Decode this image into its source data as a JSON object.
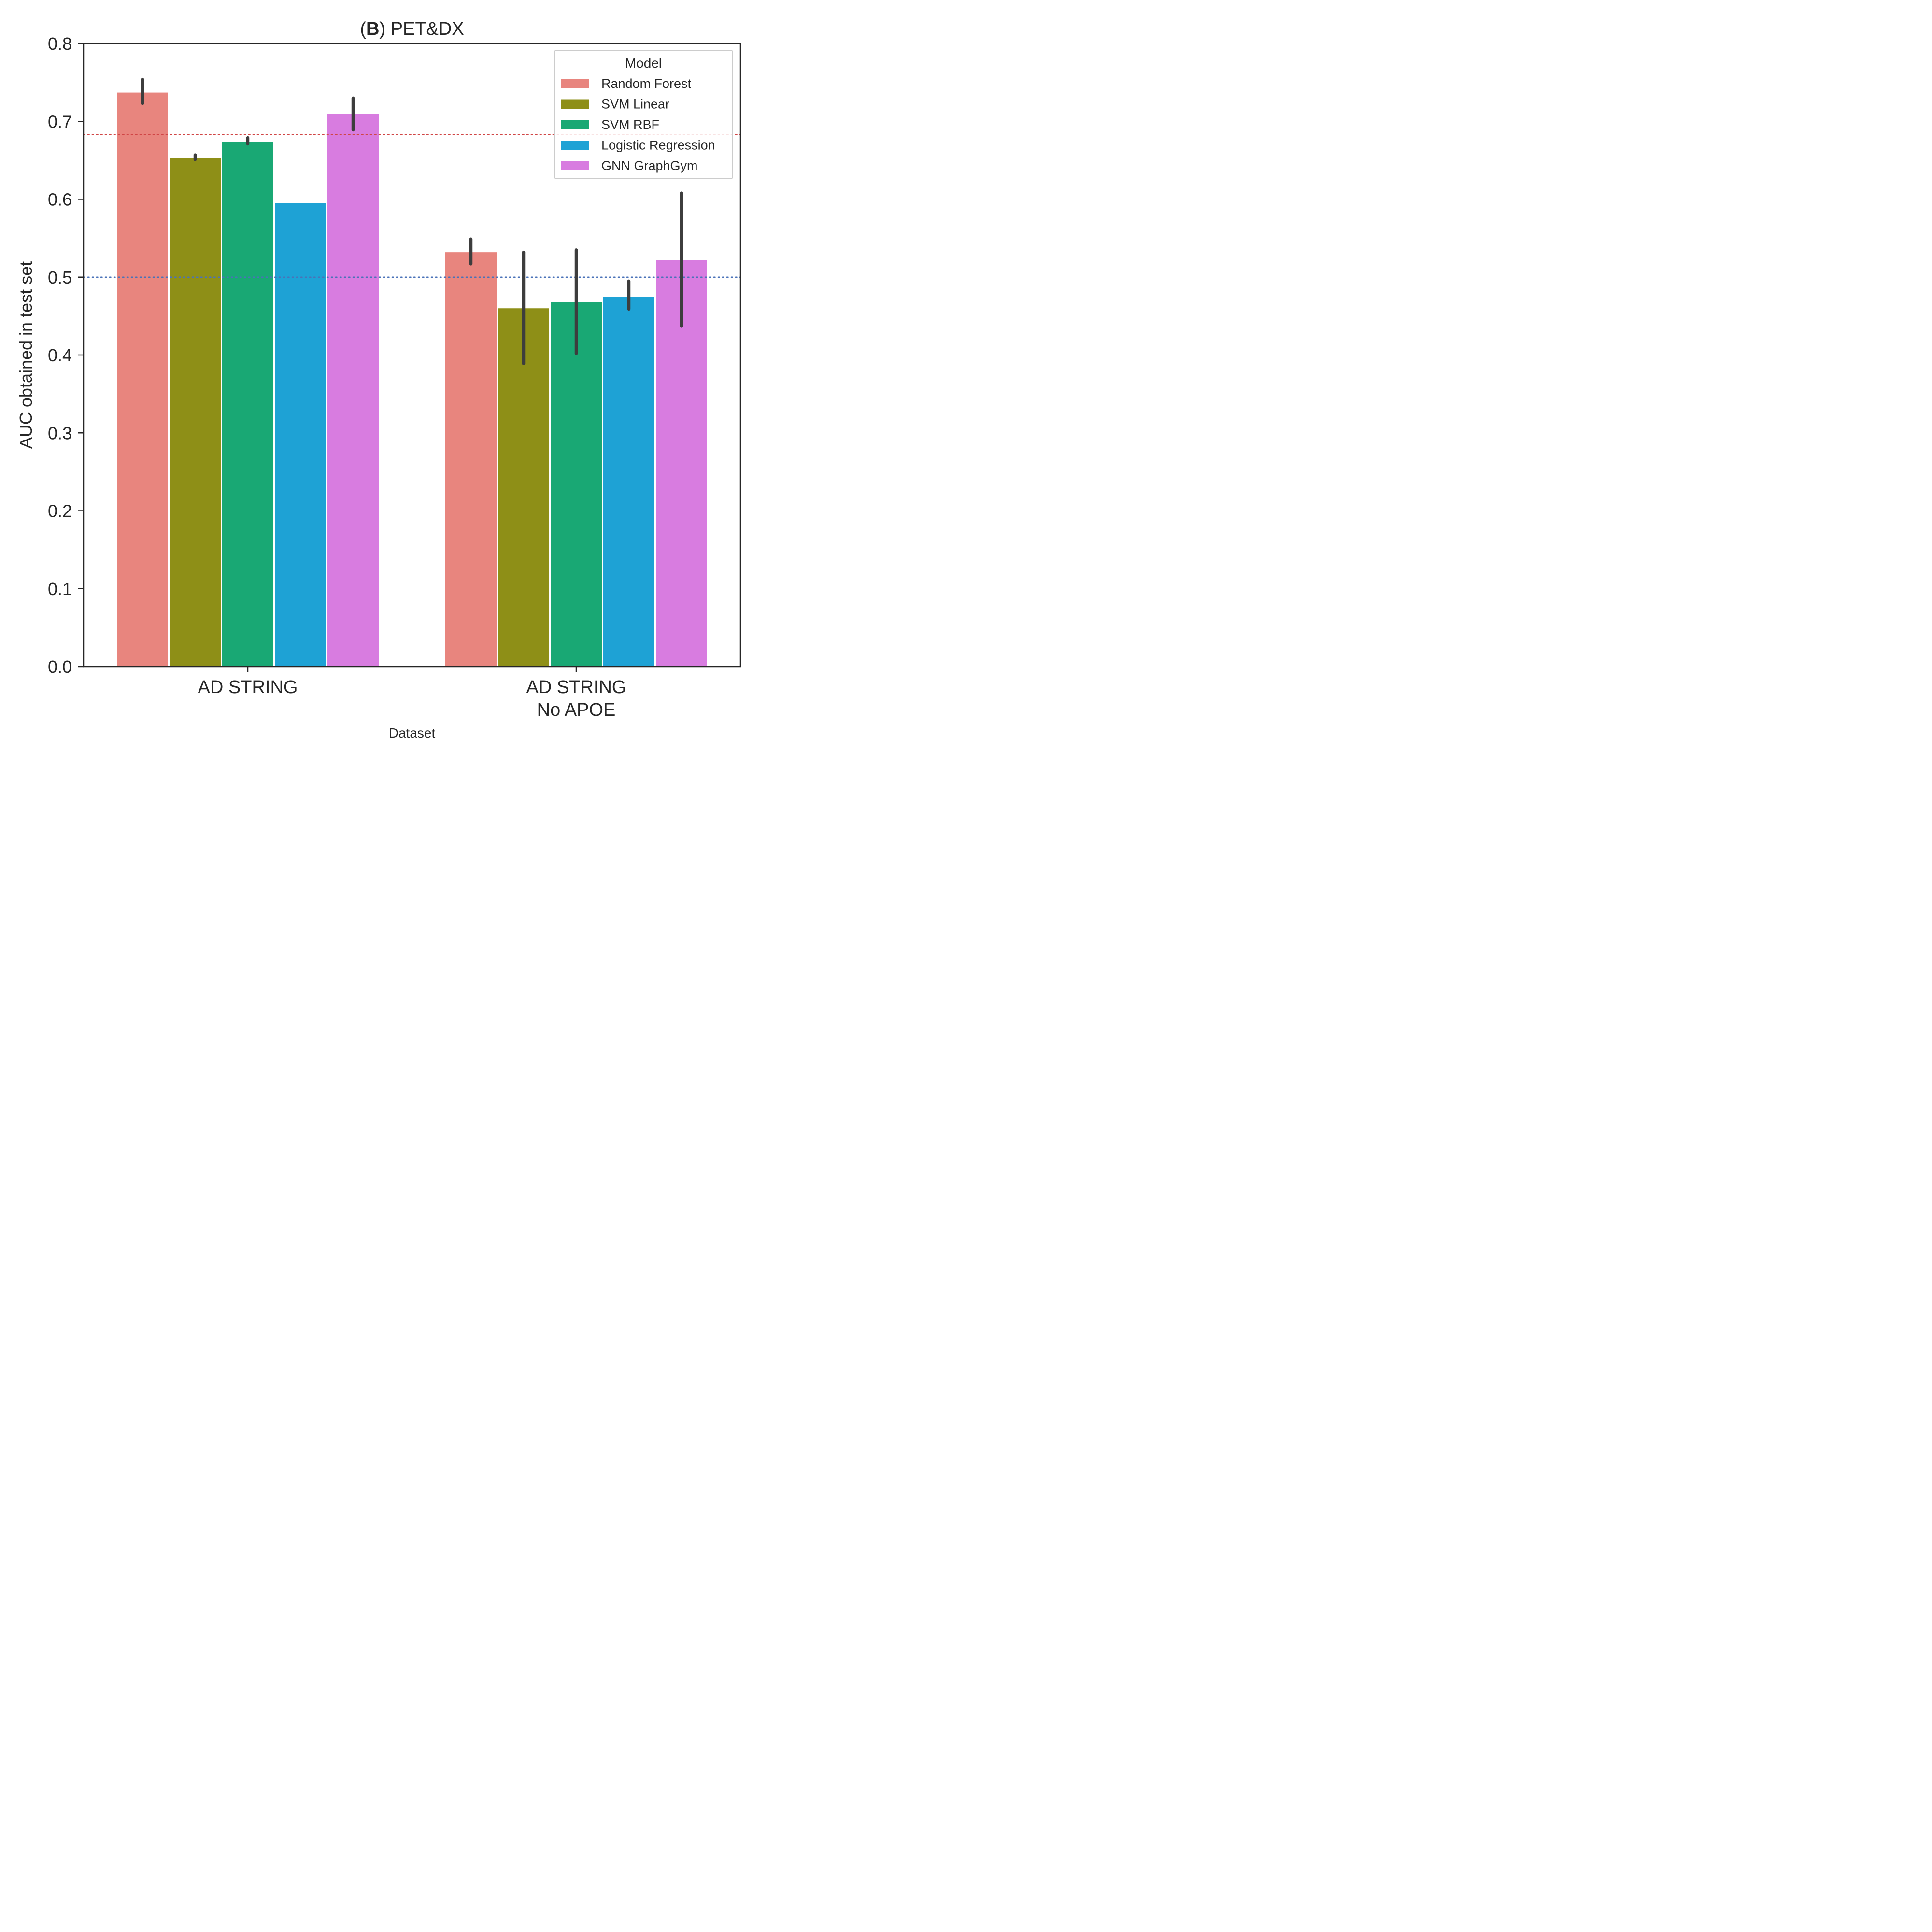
{
  "chart_data": {
    "type": "bar",
    "title_prefix_open": "(",
    "title_bold": "B",
    "title_suffix": ") PET&DX",
    "xlabel": "Dataset",
    "ylabel": "AUC obtained in test set",
    "ylim": [
      0,
      0.8
    ],
    "yticks": [
      "0.0",
      "0.1",
      "0.2",
      "0.3",
      "0.4",
      "0.5",
      "0.6",
      "0.7",
      "0.8"
    ],
    "categories": [
      [
        "AD STRING"
      ],
      [
        "AD STRING",
        "No APOE"
      ]
    ],
    "legend": {
      "title": "Model",
      "position": "top-right"
    },
    "series": [
      {
        "name": "Random Forest",
        "color": "#e8857e",
        "values": [
          0.737,
          0.532
        ],
        "err_low": [
          0.723,
          0.517
        ],
        "err_high": [
          0.754,
          0.549
        ]
      },
      {
        "name": "SVM Linear",
        "color": "#8e8f17",
        "values": [
          0.653,
          0.46
        ],
        "err_low": [
          0.651,
          0.389
        ],
        "err_high": [
          0.657,
          0.532
        ]
      },
      {
        "name": "SVM RBF",
        "color": "#19a874",
        "values": [
          0.674,
          0.468
        ],
        "err_low": [
          0.671,
          0.402
        ],
        "err_high": [
          0.679,
          0.535
        ]
      },
      {
        "name": "Logistic Regression",
        "color": "#1ea2d5",
        "values": [
          0.595,
          0.475
        ],
        "err_low": [
          0.595,
          0.459
        ],
        "err_high": [
          0.595,
          0.495
        ]
      },
      {
        "name": "GNN GraphGym",
        "color": "#d87ce0",
        "values": [
          0.709,
          0.522
        ],
        "err_low": [
          0.689,
          0.437
        ],
        "err_high": [
          0.73,
          0.608
        ]
      }
    ],
    "reference_lines": [
      {
        "value": 0.683,
        "color": "#d04545",
        "style": "dotted"
      },
      {
        "value": 0.5,
        "color": "#4a72b8",
        "style": "dotted"
      }
    ],
    "grid": false
  }
}
